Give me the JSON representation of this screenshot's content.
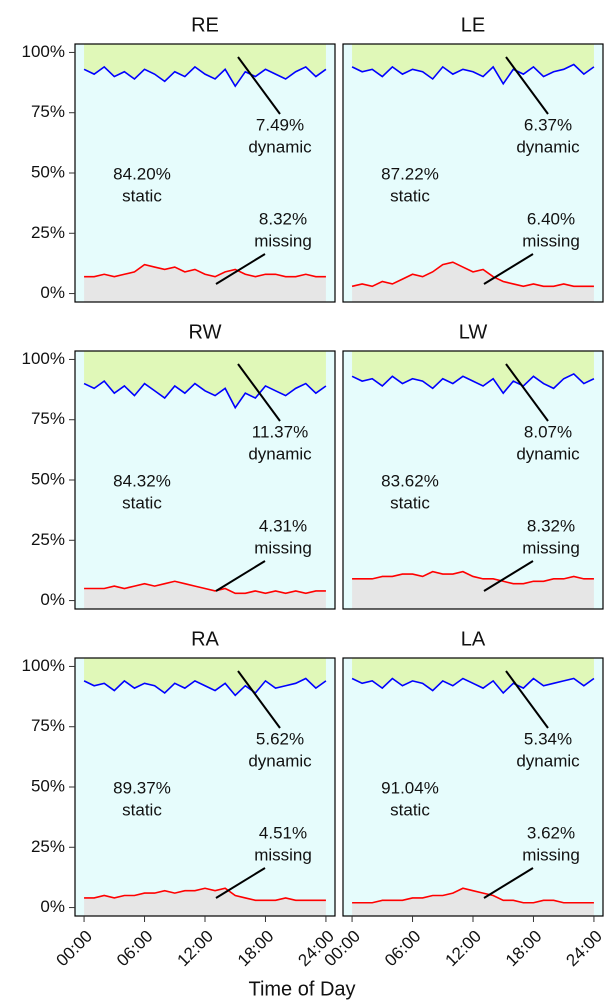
{
  "xlabel": "Time of Day",
  "chart_data": [
    {
      "type": "line",
      "title": "RE",
      "x": [
        0,
        1,
        2,
        3,
        4,
        5,
        6,
        7,
        8,
        9,
        10,
        11,
        12,
        13,
        14,
        15,
        16,
        17,
        18,
        19,
        20,
        21,
        22,
        23,
        24
      ],
      "xlim": [
        -0.9,
        24.9
      ],
      "ylim": [
        -3.5,
        103.5
      ],
      "yticks": [
        {
          "value": 0,
          "label": "0%"
        },
        {
          "value": 25,
          "label": "25%"
        },
        {
          "value": 50,
          "label": "50%"
        },
        {
          "value": 75,
          "label": "75%"
        },
        {
          "value": 100,
          "label": "100%"
        }
      ],
      "background": "#e6fcfc",
      "top_fill": "#e0f8b8",
      "bottom_fill": "#e6e6e6",
      "series": [
        {
          "color": "#0000ff",
          "values": [
            93,
            91,
            94,
            90,
            92,
            89,
            93,
            91,
            88,
            92,
            90,
            94,
            91,
            89,
            93,
            86,
            92,
            90,
            93,
            91,
            89,
            92,
            94,
            90,
            93
          ]
        },
        {
          "color": "#ff0000",
          "values": [
            7,
            7,
            8,
            7,
            8,
            9,
            12,
            11,
            10,
            11,
            9,
            10,
            8,
            7,
            9,
            10,
            8,
            7,
            8,
            8,
            7,
            7,
            8,
            7,
            7
          ]
        }
      ],
      "annotations": {
        "dynamic": [
          "7.49%",
          "dynamic"
        ],
        "static": [
          "84.20%",
          "static"
        ],
        "missing": [
          "8.32%",
          "missing"
        ]
      }
    },
    {
      "type": "line",
      "title": "LE",
      "x": [
        0,
        1,
        2,
        3,
        4,
        5,
        6,
        7,
        8,
        9,
        10,
        11,
        12,
        13,
        14,
        15,
        16,
        17,
        18,
        19,
        20,
        21,
        22,
        23,
        24
      ],
      "xlim": [
        -0.9,
        24.9
      ],
      "ylim": [
        -3.5,
        103.5
      ],
      "background": "#e6fcfc",
      "top_fill": "#e0f8b8",
      "bottom_fill": "#e6e6e6",
      "series": [
        {
          "color": "#0000ff",
          "values": [
            94,
            92,
            93,
            90,
            94,
            91,
            93,
            92,
            89,
            94,
            91,
            93,
            92,
            90,
            94,
            87,
            93,
            91,
            94,
            90,
            92,
            93,
            95,
            91,
            94
          ]
        },
        {
          "color": "#ff0000",
          "values": [
            3,
            4,
            3,
            5,
            4,
            6,
            8,
            7,
            9,
            12,
            13,
            11,
            9,
            10,
            7,
            5,
            4,
            3,
            4,
            3,
            3,
            4,
            3,
            3,
            3
          ]
        }
      ],
      "annotations": {
        "dynamic": [
          "6.37%",
          "dynamic"
        ],
        "static": [
          "87.22%",
          "static"
        ],
        "missing": [
          "6.40%",
          "missing"
        ]
      }
    },
    {
      "type": "line",
      "title": "RW",
      "x": [
        0,
        1,
        2,
        3,
        4,
        5,
        6,
        7,
        8,
        9,
        10,
        11,
        12,
        13,
        14,
        15,
        16,
        17,
        18,
        19,
        20,
        21,
        22,
        23,
        24
      ],
      "xlim": [
        -0.9,
        24.9
      ],
      "ylim": [
        -3.5,
        103.5
      ],
      "yticks": [
        {
          "value": 0,
          "label": "0%"
        },
        {
          "value": 25,
          "label": "25%"
        },
        {
          "value": 50,
          "label": "50%"
        },
        {
          "value": 75,
          "label": "75%"
        },
        {
          "value": 100,
          "label": "100%"
        }
      ],
      "background": "#e6fcfc",
      "top_fill": "#e0f8b8",
      "bottom_fill": "#e6e6e6",
      "series": [
        {
          "color": "#0000ff",
          "values": [
            90,
            88,
            91,
            86,
            89,
            85,
            90,
            87,
            84,
            89,
            86,
            90,
            87,
            85,
            88,
            80,
            86,
            84,
            89,
            87,
            85,
            88,
            90,
            86,
            89
          ]
        },
        {
          "color": "#ff0000",
          "values": [
            5,
            5,
            5,
            6,
            5,
            6,
            7,
            6,
            7,
            8,
            7,
            6,
            5,
            4,
            5,
            3,
            3,
            4,
            3,
            4,
            3,
            4,
            3,
            4,
            4
          ]
        }
      ],
      "annotations": {
        "dynamic": [
          "11.37%",
          "dynamic"
        ],
        "static": [
          "84.32%",
          "static"
        ],
        "missing": [
          "4.31%",
          "missing"
        ]
      }
    },
    {
      "type": "line",
      "title": "LW",
      "x": [
        0,
        1,
        2,
        3,
        4,
        5,
        6,
        7,
        8,
        9,
        10,
        11,
        12,
        13,
        14,
        15,
        16,
        17,
        18,
        19,
        20,
        21,
        22,
        23,
        24
      ],
      "xlim": [
        -0.9,
        24.9
      ],
      "ylim": [
        -3.5,
        103.5
      ],
      "background": "#e6fcfc",
      "top_fill": "#e0f8b8",
      "bottom_fill": "#e6e6e6",
      "series": [
        {
          "color": "#0000ff",
          "values": [
            93,
            91,
            92,
            89,
            93,
            90,
            92,
            91,
            88,
            92,
            90,
            93,
            91,
            89,
            92,
            86,
            91,
            89,
            93,
            90,
            88,
            92,
            94,
            90,
            92
          ]
        },
        {
          "color": "#ff0000",
          "values": [
            9,
            9,
            9,
            10,
            10,
            11,
            11,
            10,
            12,
            11,
            11,
            12,
            10,
            9,
            9,
            8,
            7,
            7,
            8,
            8,
            9,
            9,
            10,
            9,
            9
          ]
        }
      ],
      "annotations": {
        "dynamic": [
          "8.07%",
          "dynamic"
        ],
        "static": [
          "83.62%",
          "static"
        ],
        "missing": [
          "8.32%",
          "missing"
        ]
      }
    },
    {
      "type": "line",
      "title": "RA",
      "x": [
        0,
        1,
        2,
        3,
        4,
        5,
        6,
        7,
        8,
        9,
        10,
        11,
        12,
        13,
        14,
        15,
        16,
        17,
        18,
        19,
        20,
        21,
        22,
        23,
        24
      ],
      "xlim": [
        -0.9,
        24.9
      ],
      "ylim": [
        -3.5,
        103.5
      ],
      "yticks": [
        {
          "value": 0,
          "label": "0%"
        },
        {
          "value": 25,
          "label": "25%"
        },
        {
          "value": 50,
          "label": "50%"
        },
        {
          "value": 75,
          "label": "75%"
        },
        {
          "value": 100,
          "label": "100%"
        }
      ],
      "xticks": [
        {
          "value": 0,
          "label": "00:00"
        },
        {
          "value": 6,
          "label": "06:00"
        },
        {
          "value": 12,
          "label": "12:00"
        },
        {
          "value": 18,
          "label": "18:00"
        },
        {
          "value": 24,
          "label": "24:00"
        }
      ],
      "background": "#e6fcfc",
      "top_fill": "#e0f8b8",
      "bottom_fill": "#e6e6e6",
      "series": [
        {
          "color": "#0000ff",
          "values": [
            94,
            92,
            93,
            90,
            94,
            91,
            93,
            92,
            89,
            93,
            91,
            94,
            92,
            90,
            93,
            88,
            92,
            89,
            94,
            91,
            92,
            93,
            95,
            91,
            94
          ]
        },
        {
          "color": "#ff0000",
          "values": [
            4,
            4,
            5,
            4,
            5,
            5,
            6,
            6,
            7,
            6,
            7,
            7,
            8,
            7,
            8,
            5,
            4,
            3,
            3,
            3,
            4,
            3,
            3,
            3,
            3
          ]
        }
      ],
      "annotations": {
        "dynamic": [
          "5.62%",
          "dynamic"
        ],
        "static": [
          "89.37%",
          "static"
        ],
        "missing": [
          "4.51%",
          "missing"
        ]
      }
    },
    {
      "type": "line",
      "title": "LA",
      "x": [
        0,
        1,
        2,
        3,
        4,
        5,
        6,
        7,
        8,
        9,
        10,
        11,
        12,
        13,
        14,
        15,
        16,
        17,
        18,
        19,
        20,
        21,
        22,
        23,
        24
      ],
      "xlim": [
        -0.9,
        24.9
      ],
      "ylim": [
        -3.5,
        103.5
      ],
      "xticks": [
        {
          "value": 0,
          "label": "00:00"
        },
        {
          "value": 6,
          "label": "06:00"
        },
        {
          "value": 12,
          "label": "12:00"
        },
        {
          "value": 18,
          "label": "18:00"
        },
        {
          "value": 24,
          "label": "24:00"
        }
      ],
      "background": "#e6fcfc",
      "top_fill": "#e0f8b8",
      "bottom_fill": "#e6e6e6",
      "series": [
        {
          "color": "#0000ff",
          "values": [
            95,
            93,
            94,
            91,
            95,
            92,
            94,
            93,
            90,
            94,
            92,
            95,
            93,
            91,
            94,
            89,
            93,
            91,
            95,
            92,
            93,
            94,
            95,
            92,
            95
          ]
        },
        {
          "color": "#ff0000",
          "values": [
            2,
            2,
            2,
            3,
            3,
            3,
            4,
            4,
            5,
            5,
            6,
            8,
            7,
            6,
            5,
            3,
            3,
            2,
            2,
            3,
            3,
            2,
            2,
            2,
            2
          ]
        }
      ],
      "annotations": {
        "dynamic": [
          "5.34%",
          "dynamic"
        ],
        "static": [
          "91.04%",
          "static"
        ],
        "missing": [
          "3.62%",
          "missing"
        ]
      }
    }
  ]
}
